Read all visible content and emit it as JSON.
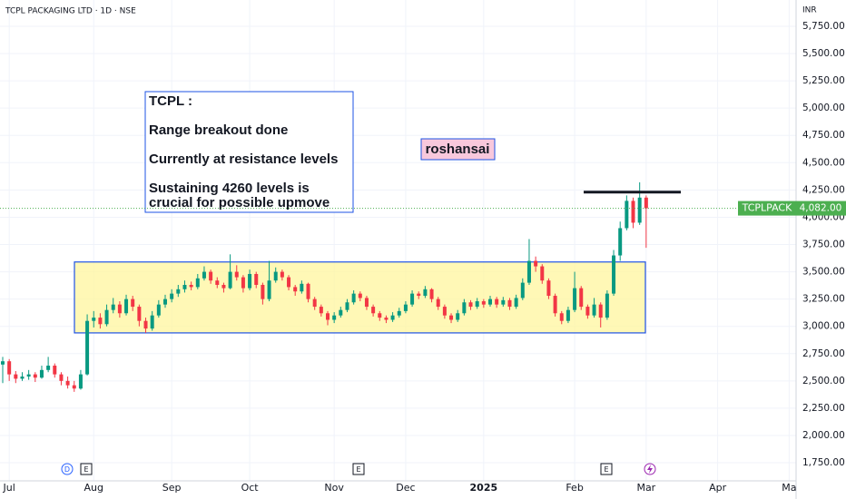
{
  "chart_data": {
    "type": "candlestick",
    "title": "TCPL PACKAGING LTD · 1D · NSE",
    "currency": "INR",
    "categories": [
      null,
      "Jul",
      null,
      null,
      null,
      null,
      null,
      null,
      null,
      null,
      null,
      null,
      null,
      null,
      "Aug",
      null,
      null,
      null,
      null,
      null,
      null,
      null,
      null,
      null,
      null,
      null,
      "Sep",
      null,
      null,
      null,
      null,
      null,
      null,
      null,
      null,
      null,
      null,
      null,
      "Oct",
      null,
      null,
      null,
      null,
      null,
      null,
      null,
      null,
      null,
      null,
      null,
      null,
      "Nov",
      null,
      null,
      null,
      null,
      null,
      null,
      null,
      null,
      null,
      null,
      "Dec",
      null,
      null,
      null,
      null,
      null,
      null,
      null,
      null,
      null,
      null,
      null,
      "2025",
      null,
      null,
      null,
      null,
      null,
      null,
      null,
      null,
      null,
      null,
      null,
      null,
      null,
      "Feb",
      null,
      null,
      null,
      null,
      null,
      null,
      null,
      null,
      null,
      null,
      "Mar",
      null,
      null,
      null,
      null,
      null,
      null,
      null,
      null,
      null,
      null,
      "Apr",
      null,
      null,
      null,
      null,
      null,
      null,
      null,
      null,
      null,
      null,
      "Ma",
      null
    ],
    "candles": [
      [
        2650,
        2720,
        2480,
        2680
      ],
      [
        2680,
        2700,
        2500,
        2560
      ],
      [
        2560,
        2590,
        2480,
        2520
      ],
      [
        2520,
        2580,
        2500,
        2540
      ],
      [
        2540,
        2600,
        2510,
        2560
      ],
      [
        2560,
        2580,
        2490,
        2530
      ],
      [
        2530,
        2640,
        2520,
        2600
      ],
      [
        2600,
        2720,
        2580,
        2640
      ],
      [
        2640,
        2660,
        2530,
        2560
      ],
      [
        2560,
        2580,
        2460,
        2500
      ],
      [
        2500,
        2540,
        2430,
        2460
      ],
      [
        2460,
        2500,
        2400,
        2430
      ],
      [
        2430,
        2600,
        2420,
        2560
      ],
      [
        2560,
        3110,
        2550,
        3050
      ],
      [
        3050,
        3140,
        2990,
        3080
      ],
      [
        3080,
        3120,
        2980,
        3020
      ],
      [
        3020,
        3200,
        3000,
        3150
      ],
      [
        3150,
        3260,
        3120,
        3200
      ],
      [
        3200,
        3230,
        3080,
        3120
      ],
      [
        3120,
        3290,
        3100,
        3250
      ],
      [
        3250,
        3280,
        3140,
        3180
      ],
      [
        3180,
        3200,
        3000,
        3050
      ],
      [
        3050,
        3080,
        2940,
        2980
      ],
      [
        2980,
        3140,
        2960,
        3100
      ],
      [
        3100,
        3240,
        3080,
        3200
      ],
      [
        3200,
        3290,
        3170,
        3250
      ],
      [
        3250,
        3340,
        3220,
        3300
      ],
      [
        3300,
        3380,
        3270,
        3340
      ],
      [
        3340,
        3420,
        3310,
        3380
      ],
      [
        3380,
        3410,
        3330,
        3360
      ],
      [
        3360,
        3480,
        3340,
        3440
      ],
      [
        3440,
        3550,
        3420,
        3500
      ],
      [
        3500,
        3520,
        3390,
        3420
      ],
      [
        3420,
        3450,
        3350,
        3380
      ],
      [
        3380,
        3400,
        3310,
        3350
      ],
      [
        3350,
        3660,
        3340,
        3500
      ],
      [
        3500,
        3560,
        3420,
        3450
      ],
      [
        3450,
        3470,
        3310,
        3350
      ],
      [
        3350,
        3520,
        3330,
        3480
      ],
      [
        3480,
        3500,
        3350,
        3380
      ],
      [
        3380,
        3400,
        3200,
        3250
      ],
      [
        3250,
        3600,
        3230,
        3420
      ],
      [
        3420,
        3540,
        3400,
        3500
      ],
      [
        3500,
        3520,
        3420,
        3450
      ],
      [
        3450,
        3470,
        3330,
        3360
      ],
      [
        3360,
        3380,
        3280,
        3320
      ],
      [
        3320,
        3420,
        3300,
        3390
      ],
      [
        3390,
        3400,
        3220,
        3250
      ],
      [
        3250,
        3270,
        3150,
        3180
      ],
      [
        3180,
        3200,
        3090,
        3120
      ],
      [
        3120,
        3140,
        3010,
        3060
      ],
      [
        3060,
        3130,
        3030,
        3100
      ],
      [
        3100,
        3180,
        3080,
        3150
      ],
      [
        3150,
        3250,
        3130,
        3220
      ],
      [
        3220,
        3330,
        3200,
        3300
      ],
      [
        3300,
        3320,
        3230,
        3260
      ],
      [
        3260,
        3280,
        3150,
        3180
      ],
      [
        3180,
        3200,
        3090,
        3120
      ],
      [
        3120,
        3140,
        3050,
        3080
      ],
      [
        3080,
        3100,
        3030,
        3060
      ],
      [
        3060,
        3130,
        3040,
        3100
      ],
      [
        3100,
        3170,
        3080,
        3140
      ],
      [
        3140,
        3230,
        3120,
        3200
      ],
      [
        3200,
        3330,
        3180,
        3300
      ],
      [
        3300,
        3320,
        3250,
        3280
      ],
      [
        3280,
        3370,
        3260,
        3340
      ],
      [
        3340,
        3350,
        3220,
        3250
      ],
      [
        3250,
        3270,
        3150,
        3180
      ],
      [
        3180,
        3200,
        3070,
        3100
      ],
      [
        3100,
        3120,
        3030,
        3060
      ],
      [
        3060,
        3150,
        3040,
        3120
      ],
      [
        3120,
        3250,
        3100,
        3220
      ],
      [
        3220,
        3240,
        3150,
        3180
      ],
      [
        3180,
        3260,
        3160,
        3230
      ],
      [
        3230,
        3250,
        3170,
        3200
      ],
      [
        3200,
        3280,
        3180,
        3250
      ],
      [
        3250,
        3270,
        3170,
        3200
      ],
      [
        3200,
        3270,
        3180,
        3240
      ],
      [
        3240,
        3260,
        3150,
        3180
      ],
      [
        3180,
        3290,
        3160,
        3260
      ],
      [
        3260,
        3440,
        3240,
        3400
      ],
      [
        3400,
        3800,
        3380,
        3600
      ],
      [
        3600,
        3640,
        3500,
        3550
      ],
      [
        3550,
        3570,
        3390,
        3420
      ],
      [
        3420,
        3440,
        3250,
        3280
      ],
      [
        3280,
        3300,
        3090,
        3120
      ],
      [
        3120,
        3140,
        3020,
        3050
      ],
      [
        3050,
        3180,
        3030,
        3150
      ],
      [
        3150,
        3500,
        3130,
        3350
      ],
      [
        3350,
        3370,
        3150,
        3180
      ],
      [
        3180,
        3200,
        3070,
        3100
      ],
      [
        3100,
        3260,
        3080,
        3200
      ],
      [
        3200,
        3220,
        2990,
        3080
      ],
      [
        3080,
        3330,
        3060,
        3300
      ],
      [
        3300,
        3700,
        3280,
        3650
      ],
      [
        3650,
        3960,
        3600,
        3900
      ],
      [
        3900,
        4200,
        3880,
        4150
      ],
      [
        4150,
        4180,
        3900,
        3950
      ],
      [
        3950,
        4320,
        3930,
        4180
      ],
      [
        4180,
        4200,
        3720,
        4082
      ],
      null,
      null,
      null,
      null,
      null,
      null,
      null,
      null,
      null,
      null,
      null,
      null,
      null,
      null,
      null,
      null,
      null,
      null,
      null,
      null,
      null,
      null,
      null
    ],
    "up_color": "#089981",
    "down_color": "#f23645",
    "ylim": [
      1584,
      5991
    ],
    "yticks": [
      {
        "value": 1750,
        "label": "1,750.00"
      },
      {
        "value": 2000,
        "label": "2,000.00"
      },
      {
        "value": 2250,
        "label": "2,250.00"
      },
      {
        "value": 2500,
        "label": "2,500.00"
      },
      {
        "value": 2750,
        "label": "2,750.00"
      },
      {
        "value": 3000,
        "label": "3,000.00"
      },
      {
        "value": 3250,
        "label": "3,250.00"
      },
      {
        "value": 3500,
        "label": "3,500.00"
      },
      {
        "value": 3750,
        "label": "3,750.00"
      },
      {
        "value": 4000,
        "label": "4,000.00"
      },
      {
        "value": 4250,
        "label": "4,250.00"
      },
      {
        "value": 4500,
        "label": "4,500.00"
      },
      {
        "value": 4750,
        "label": "4,750.00"
      },
      {
        "value": 5000,
        "label": "5,000.00"
      },
      {
        "value": 5250,
        "label": "5,250.00"
      },
      {
        "value": 5500,
        "label": "5,500.00"
      },
      {
        "value": 5750,
        "label": "5,750.00"
      }
    ],
    "grid": true,
    "symbol_label": "TCPLPACK",
    "last_price": 4082,
    "last_price_label": "4,082.00",
    "range_box": {
      "low": 2940,
      "high": 3590
    },
    "resistance": 4230,
    "note_lines": [
      "TCPL :",
      "Range breakout done",
      "Currently at resistance levels",
      "Sustaining 4260 levels is",
      "crucial for possible upmove"
    ],
    "watermark": "roshansai",
    "events": [
      "D",
      "E",
      "E",
      "E"
    ]
  }
}
